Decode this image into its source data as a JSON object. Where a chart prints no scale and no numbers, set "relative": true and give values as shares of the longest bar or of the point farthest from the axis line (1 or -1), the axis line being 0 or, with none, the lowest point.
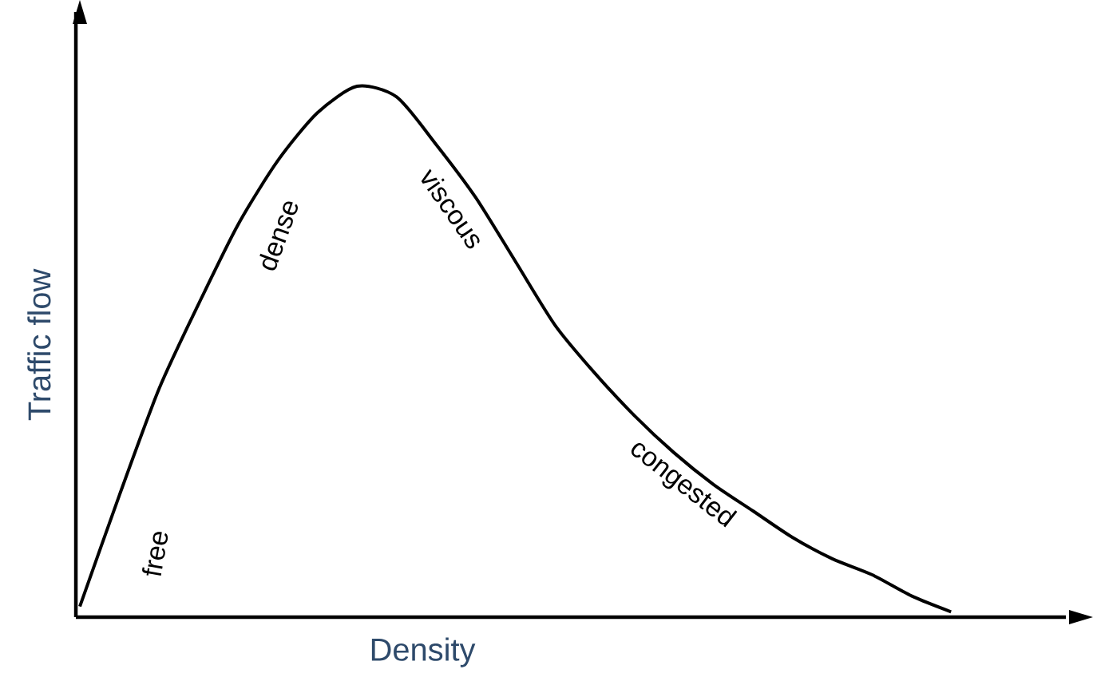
{
  "chart_data": {
    "type": "line",
    "relative": true,
    "xlabel": "Density",
    "ylabel": "Traffic flow",
    "color": "#000000",
    "categories": [
      null,
      null,
      null,
      null,
      null,
      null,
      null,
      null,
      null,
      null,
      null,
      null,
      null,
      null,
      null,
      null,
      null,
      null,
      null,
      null,
      null,
      null,
      null
    ],
    "values": [
      0.02,
      0.23,
      0.43,
      0.59,
      0.74,
      0.86,
      0.95,
      1,
      0.98,
      0.89,
      0.79,
      0.67,
      0.55,
      0.46,
      0.38,
      0.31,
      0.25,
      0.2,
      0.15,
      0.11,
      0.08,
      0.04,
      0.01
    ],
    "annotations": [
      "free",
      "dense",
      "viscous",
      "congested"
    ]
  }
}
